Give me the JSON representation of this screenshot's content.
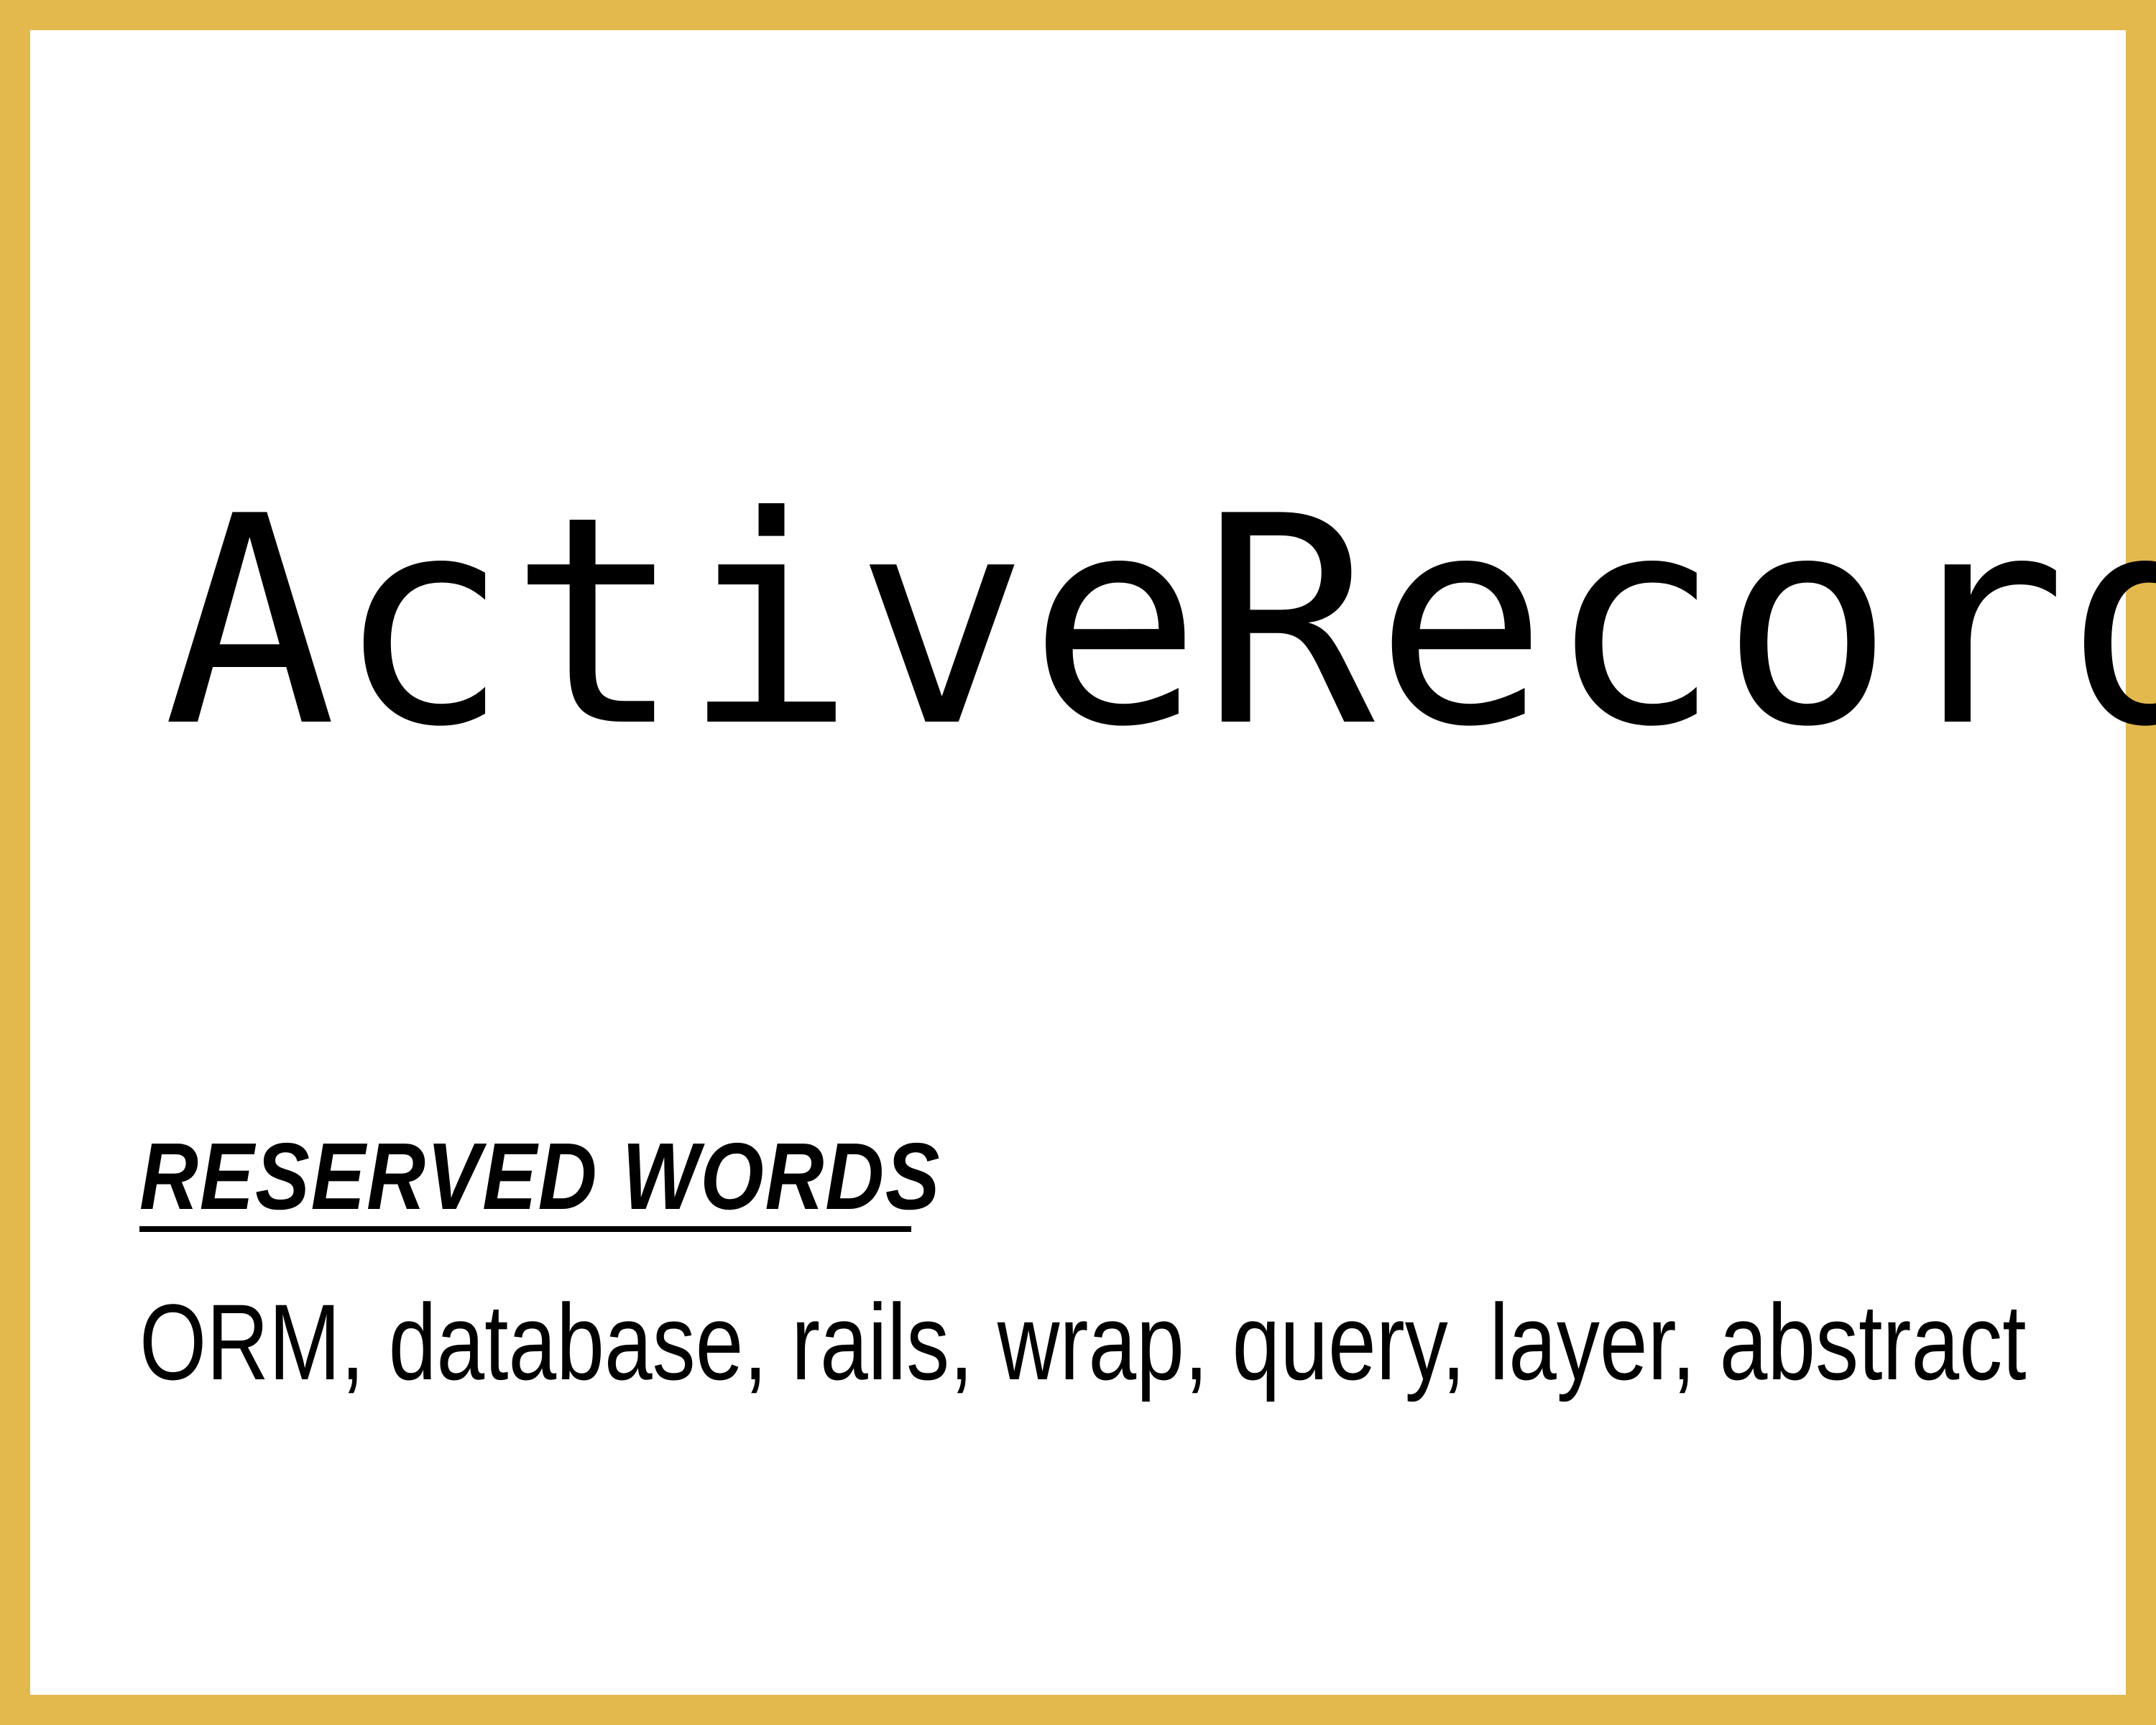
{
  "card": {
    "title": "ActiveRecord",
    "section_heading": "RESERVED WORDS",
    "keywords": "ORM, database, rails, wrap, query, layer, abstract"
  },
  "colors": {
    "frame": "#e3b84c",
    "background": "#ffffff",
    "text": "#000000"
  }
}
